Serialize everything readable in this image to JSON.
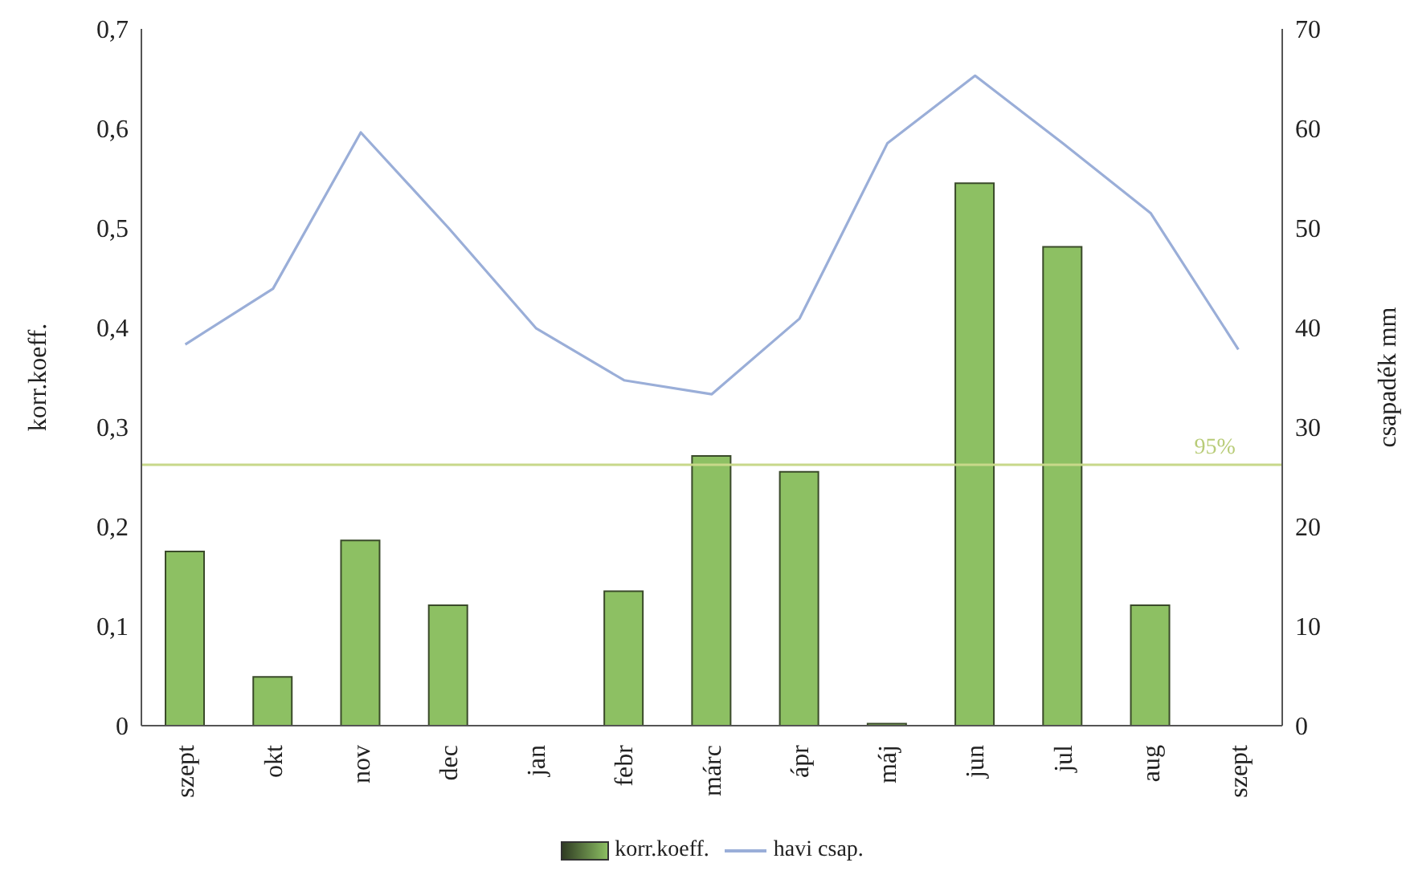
{
  "chart_data": {
    "type": "bar",
    "categories": [
      "szept",
      "okt",
      "nov",
      "dec",
      "jan",
      "febr",
      "márc",
      "ápr",
      "máj",
      "jun",
      "jul",
      "aug",
      "szept"
    ],
    "series": [
      {
        "name": "korr.koeff.",
        "color": "#8dc063",
        "values": [
          0.175,
          0.049,
          0.186,
          0.121,
          0,
          0.135,
          0.271,
          0.255,
          0.002,
          0.545,
          0.481,
          0.121,
          null
        ]
      },
      {
        "name": "havi csap.",
        "type": "line",
        "axis": "y2",
        "color": "#9aaed8",
        "values": [
          38.3,
          43.9,
          59.6,
          50,
          39.9,
          34.7,
          33.3,
          40.9,
          58.5,
          65.3,
          58.5,
          51.5,
          37.8
        ]
      }
    ],
    "ylabel": "korr.koeff.",
    "y2label": "csapadék mm",
    "ylim": [
      0,
      0.7
    ],
    "yticks": [
      {
        "value": 0,
        "label": "0"
      },
      {
        "value": 0.1,
        "label": "0,1"
      },
      {
        "value": 0.2,
        "label": "0,2"
      },
      {
        "value": 0.3,
        "label": "0,3"
      },
      {
        "value": 0.4,
        "label": "0,4"
      },
      {
        "value": 0.5,
        "label": "0,5"
      },
      {
        "value": 0.6,
        "label": "0,6"
      },
      {
        "value": 0.7,
        "label": "0,7"
      }
    ],
    "y2lim": [
      0,
      70
    ],
    "y2ticks": [
      0,
      10,
      20,
      30,
      40,
      50,
      60,
      70
    ],
    "ref_lines": [
      {
        "axis": "y",
        "value": 0.262,
        "color": "#c8d88a"
      }
    ],
    "annotations": [
      {
        "text": "95%",
        "x": "aug",
        "y": 0.262
      }
    ],
    "legend": "bottom",
    "grid": false,
    "marker": "none"
  }
}
